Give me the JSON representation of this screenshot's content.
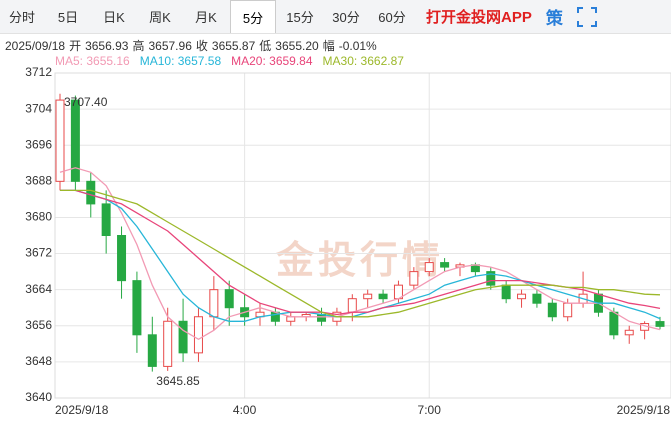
{
  "tabs": [
    "分时",
    "5日",
    "日K",
    "周K",
    "月K",
    "5分",
    "15分",
    "30分",
    "60分"
  ],
  "selected_tab": 5,
  "app_link": "打开金投网APP",
  "strategy": "策",
  "header": {
    "date": "2025/09/18",
    "stats": [
      {
        "label": "开",
        "value": "3656.93"
      },
      {
        "label": "高",
        "value": "3657.96"
      },
      {
        "label": "收",
        "value": "3655.87"
      },
      {
        "label": "低",
        "value": "3655.20"
      },
      {
        "label": "幅",
        "value": "-0.01%"
      }
    ]
  },
  "chart_data": {
    "type": "candlestick",
    "watermark": "金投行情",
    "up_color": "#e84a4a",
    "down_color": "#26a843",
    "categories": [
      "2025/9/18",
      null,
      null,
      null,
      null,
      null,
      null,
      null,
      null,
      null,
      null,
      null,
      "4:00",
      null,
      null,
      null,
      null,
      null,
      null,
      null,
      null,
      null,
      null,
      null,
      "7:00",
      null,
      null,
      null,
      null,
      null,
      null,
      null,
      null,
      null,
      null,
      null,
      null,
      null,
      null,
      "2025/9/18"
    ],
    "open": [
      3688,
      3706,
      3688,
      3683,
      3676,
      3666,
      3654,
      3647,
      3657,
      3650,
      3658,
      3664,
      3660,
      3658,
      3659,
      3657,
      3658,
      3658.5,
      3657,
      3659,
      3662,
      3663,
      3662,
      3665,
      3668,
      3670,
      3669,
      3669.5,
      3668,
      3665,
      3662,
      3663,
      3661,
      3658,
      3661,
      3663,
      3659,
      3654,
      3655,
      3656.93
    ],
    "high": [
      3707.4,
      3707,
      3690,
      3686,
      3678,
      3668,
      3658,
      3660,
      3662,
      3660,
      3667,
      3666,
      3663,
      3661,
      3660,
      3659,
      3659,
      3660,
      3660,
      3663,
      3664,
      3664,
      3666,
      3669,
      3671,
      3671,
      3670,
      3670,
      3669,
      3666,
      3664,
      3664,
      3662,
      3662,
      3668,
      3664,
      3660,
      3656,
      3657,
      3657.96
    ],
    "low": [
      3686,
      3686,
      3680,
      3672,
      3662,
      3650,
      3645.85,
      3646,
      3648,
      3648,
      3655,
      3656,
      3656,
      3656,
      3656,
      3656,
      3657,
      3656,
      3656,
      3657,
      3660,
      3661,
      3661,
      3664,
      3667,
      3668,
      3667,
      3667,
      3664,
      3661,
      3660,
      3660,
      3657,
      3657,
      3660,
      3658,
      3653,
      3652,
      3653,
      3655.2
    ],
    "close": [
      3706,
      3688,
      3683,
      3676,
      3666,
      3654,
      3647,
      3657,
      3650,
      3658,
      3664,
      3660,
      3658,
      3659,
      3657,
      3658,
      3658.5,
      3657,
      3659,
      3662,
      3663,
      3662,
      3665,
      3668,
      3670,
      3669,
      3669.5,
      3668,
      3665,
      3662,
      3663,
      3661,
      3658,
      3661,
      3663,
      3659,
      3654,
      3655,
      3656.5,
      3655.87
    ],
    "annotations": [
      {
        "value": 3707.4,
        "label": "3707.40"
      },
      {
        "value": 3645.85,
        "label": "3645.85"
      }
    ],
    "series": [
      {
        "label": "MA5: 3655.16",
        "color": "#f29ab4",
        "values": [
          3690,
          3691,
          3690,
          3687,
          3681,
          3674,
          3665,
          3658,
          3655,
          3653,
          3655,
          3658,
          3659,
          3660,
          3659,
          3658,
          3658,
          3658,
          3658,
          3659,
          3660,
          3661,
          3662,
          3664,
          3666,
          3668,
          3669,
          3669.5,
          3669,
          3668,
          3666,
          3664,
          3662,
          3661,
          3661,
          3661,
          3659,
          3657,
          3656,
          3655.16
        ]
      },
      {
        "label": "MA10: 3657.58",
        "color": "#27b6d8",
        "values": [
          3686,
          3686,
          3685,
          3684,
          3682,
          3678,
          3673,
          3668,
          3663,
          3660,
          3658,
          3657,
          3657,
          3658,
          3658.5,
          3659,
          3659,
          3658.5,
          3658,
          3658,
          3659,
          3660,
          3661,
          3662,
          3663,
          3665,
          3666,
          3667,
          3667.5,
          3667,
          3666,
          3665,
          3664,
          3663,
          3662,
          3661,
          3661,
          3660,
          3659,
          3657.58
        ]
      },
      {
        "label": "MA20: 3659.84",
        "color": "#e8457a",
        "values": [
          3686,
          3686,
          3685,
          3684,
          3683,
          3681,
          3679,
          3677,
          3674,
          3671,
          3668,
          3665,
          3663,
          3661,
          3660,
          3659,
          3659,
          3659,
          3658.5,
          3659,
          3659,
          3660,
          3660.5,
          3661,
          3662,
          3663,
          3664,
          3665,
          3666,
          3666,
          3666,
          3665.5,
          3665,
          3664.5,
          3664,
          3663,
          3662,
          3661,
          3660.5,
          3659.84
        ]
      },
      {
        "label": "MA30: 3662.87",
        "color": "#9cb82a",
        "values": [
          3686,
          3686,
          3686,
          3685,
          3684,
          3683,
          3681,
          3679,
          3677,
          3675,
          3673,
          3671,
          3669,
          3667,
          3665,
          3663,
          3661,
          3659,
          3658,
          3658,
          3658,
          3658.5,
          3659,
          3660,
          3661,
          3662,
          3663,
          3664,
          3664.5,
          3665,
          3665,
          3665,
          3665,
          3664.5,
          3664.5,
          3664,
          3664,
          3663.5,
          3663,
          3662.87
        ]
      }
    ],
    "ylim": [
      3640,
      3712
    ],
    "yticks": [
      3640,
      3648,
      3656,
      3664,
      3672,
      3680,
      3688,
      3696,
      3704,
      3712
    ],
    "grid": true
  }
}
